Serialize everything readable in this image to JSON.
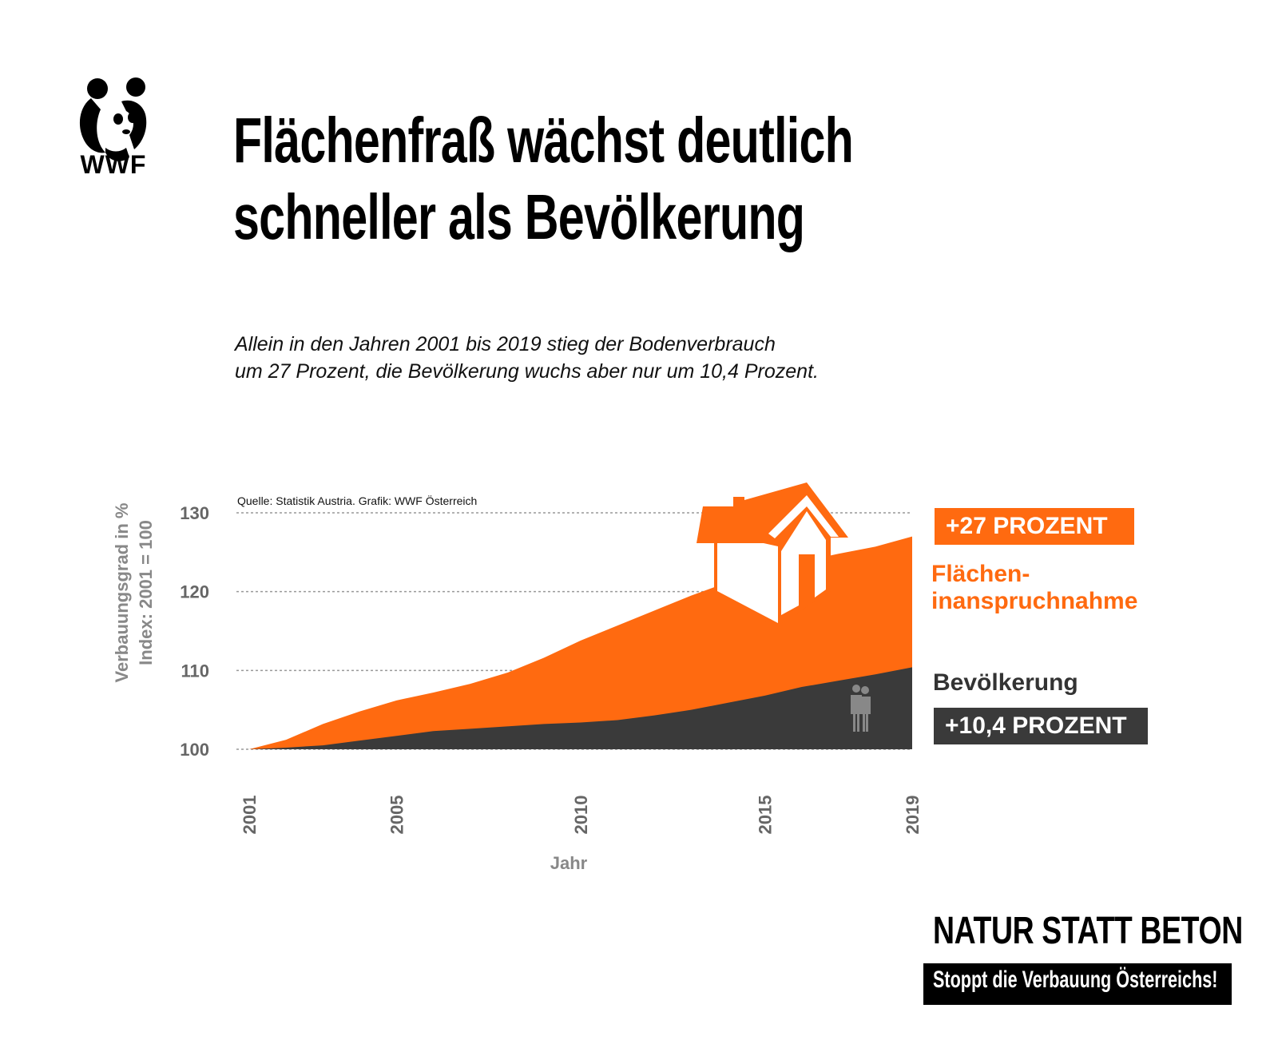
{
  "logo": {
    "text": "WWF"
  },
  "header": {
    "title_line1": "Flächenfraß wächst deutlich",
    "title_line2": "schneller als Bevölkerung",
    "subtitle_line1": "Allein in den Jahren 2001 bis 2019 stieg der Bodenverbrauch",
    "subtitle_line2": "um 27 Prozent, die Bevölkerung wuchs aber nur um 10,4 Prozent."
  },
  "chart_data": {
    "type": "area",
    "source": "Quelle: Statistik Austria. Grafik: WWF Österreich",
    "xlabel": "Jahr",
    "ylabel_line1": "Verbauungsgrad in %",
    "ylabel_line2": "Index: 2001 = 100",
    "ylim": [
      100,
      130
    ],
    "yticks": [
      "100",
      "110",
      "120",
      "130"
    ],
    "xticks": [
      "2001",
      "2005",
      "2010",
      "2015",
      "2019"
    ],
    "x": [
      2001,
      2002,
      2003,
      2004,
      2005,
      2006,
      2007,
      2008,
      2009,
      2010,
      2011,
      2012,
      2013,
      2014,
      2015,
      2016,
      2017,
      2018,
      2019
    ],
    "series": [
      {
        "name": "Flächeninanspruchnahme",
        "color": "#ff6a10",
        "values": [
          100,
          101.2,
          103.2,
          104.8,
          106.2,
          107.2,
          108.3,
          109.7,
          111.6,
          113.8,
          115.7,
          117.6,
          119.5,
          121.2,
          122.8,
          123.8,
          124.8,
          125.7,
          127
        ]
      },
      {
        "name": "Bevölkerung",
        "color": "#3a3a3a",
        "values": [
          100,
          100.2,
          100.5,
          101.1,
          101.7,
          102.3,
          102.6,
          102.9,
          103.2,
          103.4,
          103.7,
          104.3,
          105.0,
          105.9,
          106.8,
          107.9,
          108.7,
          109.5,
          110.4
        ]
      }
    ],
    "grid": true
  },
  "labels": {
    "area_badge": "+27 PROZENT",
    "area_name_line1": "Flächen-",
    "area_name_line2": "inanspruchnahme",
    "pop_name": "Bevölkerung",
    "pop_badge": "+10,4 PROZENT"
  },
  "footer": {
    "slogan": "NATUR STATT BETON",
    "sub": "Stoppt die Verbauung Österreichs!"
  },
  "colors": {
    "accent": "#ff6a10",
    "dark": "#3a3a3a"
  }
}
